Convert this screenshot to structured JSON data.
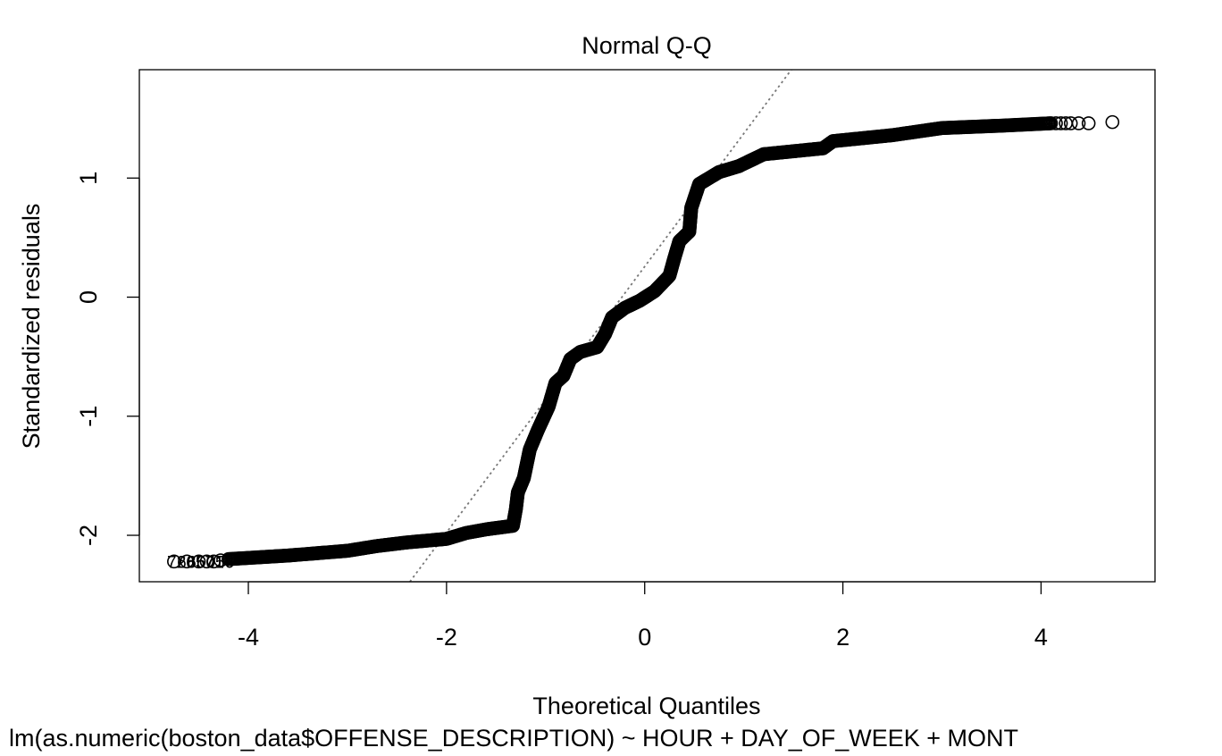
{
  "chart_data": {
    "type": "scatter",
    "title": "Normal Q-Q",
    "xlabel": "Theoretical Quantiles",
    "ylabel": "Standardized residuals",
    "subtitle": "lm(as.numeric(boston_data$OFFENSE_DESCRIPTION) ~ HOUR + DAY_OF_WEEK + MONT",
    "xlim": [
      -5.1,
      5.15
    ],
    "ylim": [
      -2.39,
      1.91
    ],
    "x_ticks": [
      -4,
      -2,
      0,
      2,
      4
    ],
    "y_ticks": [
      -2,
      -1,
      0,
      1
    ],
    "x_tick_labels": [
      "-4",
      "-2",
      "0",
      "2",
      "4"
    ],
    "y_tick_labels": [
      "-2",
      "-1",
      "0",
      "1"
    ],
    "grid": false,
    "reference_line": {
      "style": "dotted",
      "color": "#777777",
      "points": [
        [
          -2.37,
          -2.39
        ],
        [
          1.48,
          1.91
        ]
      ]
    },
    "outlier_labels": [
      "72657",
      "68571",
      "66056"
    ],
    "point_color": "#000000",
    "profile": [
      [
        -4.2,
        -2.2
      ],
      [
        -3.6,
        -2.17
      ],
      [
        -3.0,
        -2.13
      ],
      [
        -2.7,
        -2.09
      ],
      [
        -2.4,
        -2.06
      ],
      [
        -2.0,
        -2.03
      ],
      [
        -1.8,
        -1.98
      ],
      [
        -1.6,
        -1.95
      ],
      [
        -1.33,
        -1.92
      ],
      [
        -1.3,
        -1.78
      ],
      [
        -1.28,
        -1.64
      ],
      [
        -1.22,
        -1.52
      ],
      [
        -1.16,
        -1.28
      ],
      [
        -1.08,
        -1.12
      ],
      [
        -0.97,
        -0.92
      ],
      [
        -0.9,
        -0.72
      ],
      [
        -0.82,
        -0.66
      ],
      [
        -0.75,
        -0.52
      ],
      [
        -0.65,
        -0.46
      ],
      [
        -0.48,
        -0.42
      ],
      [
        -0.4,
        -0.31
      ],
      [
        -0.33,
        -0.17
      ],
      [
        -0.2,
        -0.09
      ],
      [
        -0.05,
        -0.03
      ],
      [
        0.1,
        0.05
      ],
      [
        0.25,
        0.18
      ],
      [
        0.3,
        0.33
      ],
      [
        0.35,
        0.47
      ],
      [
        0.45,
        0.55
      ],
      [
        0.47,
        0.75
      ],
      [
        0.55,
        0.95
      ],
      [
        0.75,
        1.05
      ],
      [
        0.95,
        1.1
      ],
      [
        1.2,
        1.2
      ],
      [
        1.8,
        1.25
      ],
      [
        1.9,
        1.31
      ],
      [
        2.5,
        1.36
      ],
      [
        3.0,
        1.42
      ],
      [
        3.6,
        1.44
      ],
      [
        4.1,
        1.46
      ]
    ],
    "upper_tail_points": [
      [
        4.15,
        1.46
      ],
      [
        4.2,
        1.46
      ],
      [
        4.25,
        1.46
      ],
      [
        4.3,
        1.46
      ],
      [
        4.38,
        1.46
      ],
      [
        4.48,
        1.46
      ],
      [
        4.72,
        1.47
      ]
    ],
    "lower_tail_points": [
      [
        -4.75,
        -2.22
      ],
      [
        -4.62,
        -2.22
      ],
      [
        -4.5,
        -2.22
      ],
      [
        -4.42,
        -2.22
      ],
      [
        -4.35,
        -2.22
      ],
      [
        -4.28,
        -2.21
      ]
    ]
  }
}
